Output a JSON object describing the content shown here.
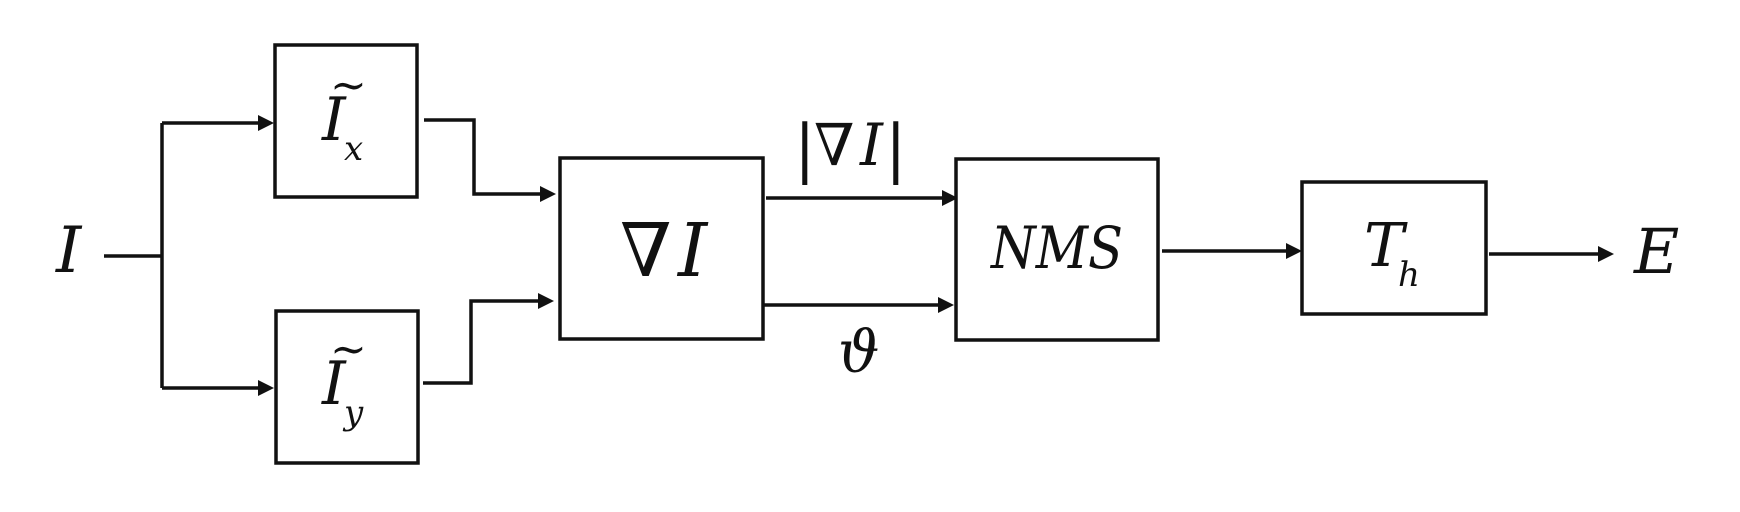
{
  "diagram": {
    "input_label": "I",
    "output_label": "E",
    "blocks": {
      "ix": {
        "base": "I",
        "accent": "~",
        "sub": "x"
      },
      "iy": {
        "base": "I",
        "accent": "~",
        "sub": "y"
      },
      "grad": {
        "nabla": "∇",
        "var": "I"
      },
      "nms": {
        "label": "NMS"
      },
      "th": {
        "base": "T",
        "sub": "h"
      }
    },
    "edges": {
      "magnitude": {
        "bar_left": "|",
        "nabla": "∇",
        "var": "I",
        "bar_right": "|"
      },
      "angle": {
        "label": "ϑ"
      }
    }
  }
}
